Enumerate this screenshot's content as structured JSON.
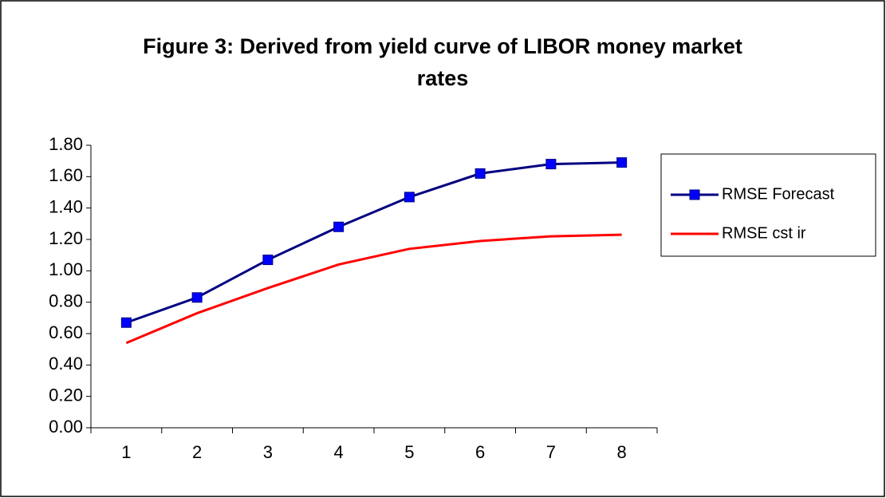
{
  "chart_data": {
    "type": "line",
    "title": "Figure 3: Derived from yield curve of LIBOR money market rates",
    "categories": [
      "1",
      "2",
      "3",
      "4",
      "5",
      "6",
      "7",
      "8"
    ],
    "series": [
      {
        "name": "RMSE Forecast",
        "color": "#000080",
        "marker": "square",
        "marker_color": "#0000ff",
        "values": [
          0.67,
          0.83,
          1.07,
          1.28,
          1.47,
          1.62,
          1.68,
          1.69
        ]
      },
      {
        "name": "RMSE cst ir",
        "color": "#ff0000",
        "values": [
          0.54,
          0.73,
          0.89,
          1.04,
          1.14,
          1.19,
          1.22,
          1.23
        ]
      }
    ],
    "ylim": [
      0,
      1.8
    ],
    "yticks": [
      {
        "value": 0,
        "label": "0.00"
      },
      {
        "value": 0.2,
        "label": "0.20"
      },
      {
        "value": 0.4,
        "label": "0.40"
      },
      {
        "value": 0.6,
        "label": "0.60"
      },
      {
        "value": 0.8,
        "label": "0.80"
      },
      {
        "value": 1,
        "label": "1.00"
      },
      {
        "value": 1.2,
        "label": "1.20"
      },
      {
        "value": 1.4,
        "label": "1.40"
      },
      {
        "value": 1.6,
        "label": "1.60"
      },
      {
        "value": 1.8,
        "label": "1.80"
      }
    ],
    "grid": false,
    "legend": "right"
  }
}
